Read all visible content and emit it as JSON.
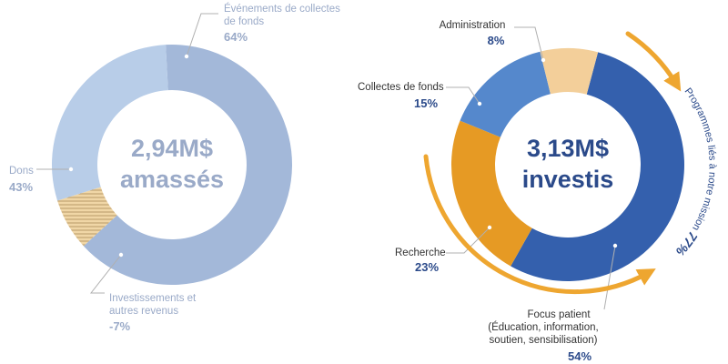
{
  "colors": {
    "raised_events": "#a3b8d9",
    "raised_donations": "#b8cde8",
    "raised_invest": "#e9c58a",
    "raised_text": "#9aaac8",
    "spent_patient": "#3460ad",
    "spent_research": "#e69a24",
    "spent_fundraising": "#5588cc",
    "spent_admin": "#f3cf9a",
    "spent_text": "#2b4a8a",
    "arrow": "#eea630",
    "leader": "#b0b0b0"
  },
  "chart_data": [
    {
      "type": "donut",
      "center_value": "2,94M$",
      "center_label": "amassés",
      "slices": [
        {
          "name": "Événements de collectes de fonds",
          "label_lines": [
            "Événements de collectes",
            "de fonds"
          ],
          "value": 64,
          "display": "64%"
        },
        {
          "name": "Dons",
          "label_lines": [
            "Dons"
          ],
          "value": 43,
          "display": "43%"
        },
        {
          "name": "Investissements et autres revenus",
          "label_lines": [
            "Investissements et",
            "autres revenus"
          ],
          "value": -7,
          "display": "-7%",
          "pattern": "hatched"
        }
      ]
    },
    {
      "type": "donut",
      "center_value": "3,13M$",
      "center_label": "investis",
      "slices": [
        {
          "name": "Focus patient",
          "label_lines": [
            "Focus patient",
            "(Éducation, information,",
            "soutien, sensibilisation)"
          ],
          "value": 54,
          "display": "54%"
        },
        {
          "name": "Recherche",
          "label_lines": [
            "Recherche"
          ],
          "value": 23,
          "display": "23%"
        },
        {
          "name": "Collectes de fonds",
          "label_lines": [
            "Collectes de fonds"
          ],
          "value": 15,
          "display": "15%"
        },
        {
          "name": "Administration",
          "label_lines": [
            "Administration"
          ],
          "value": 8,
          "display": "8%"
        }
      ],
      "annotation": {
        "text_before": "Programmes liés à notre mission ",
        "value": "77%"
      }
    }
  ]
}
